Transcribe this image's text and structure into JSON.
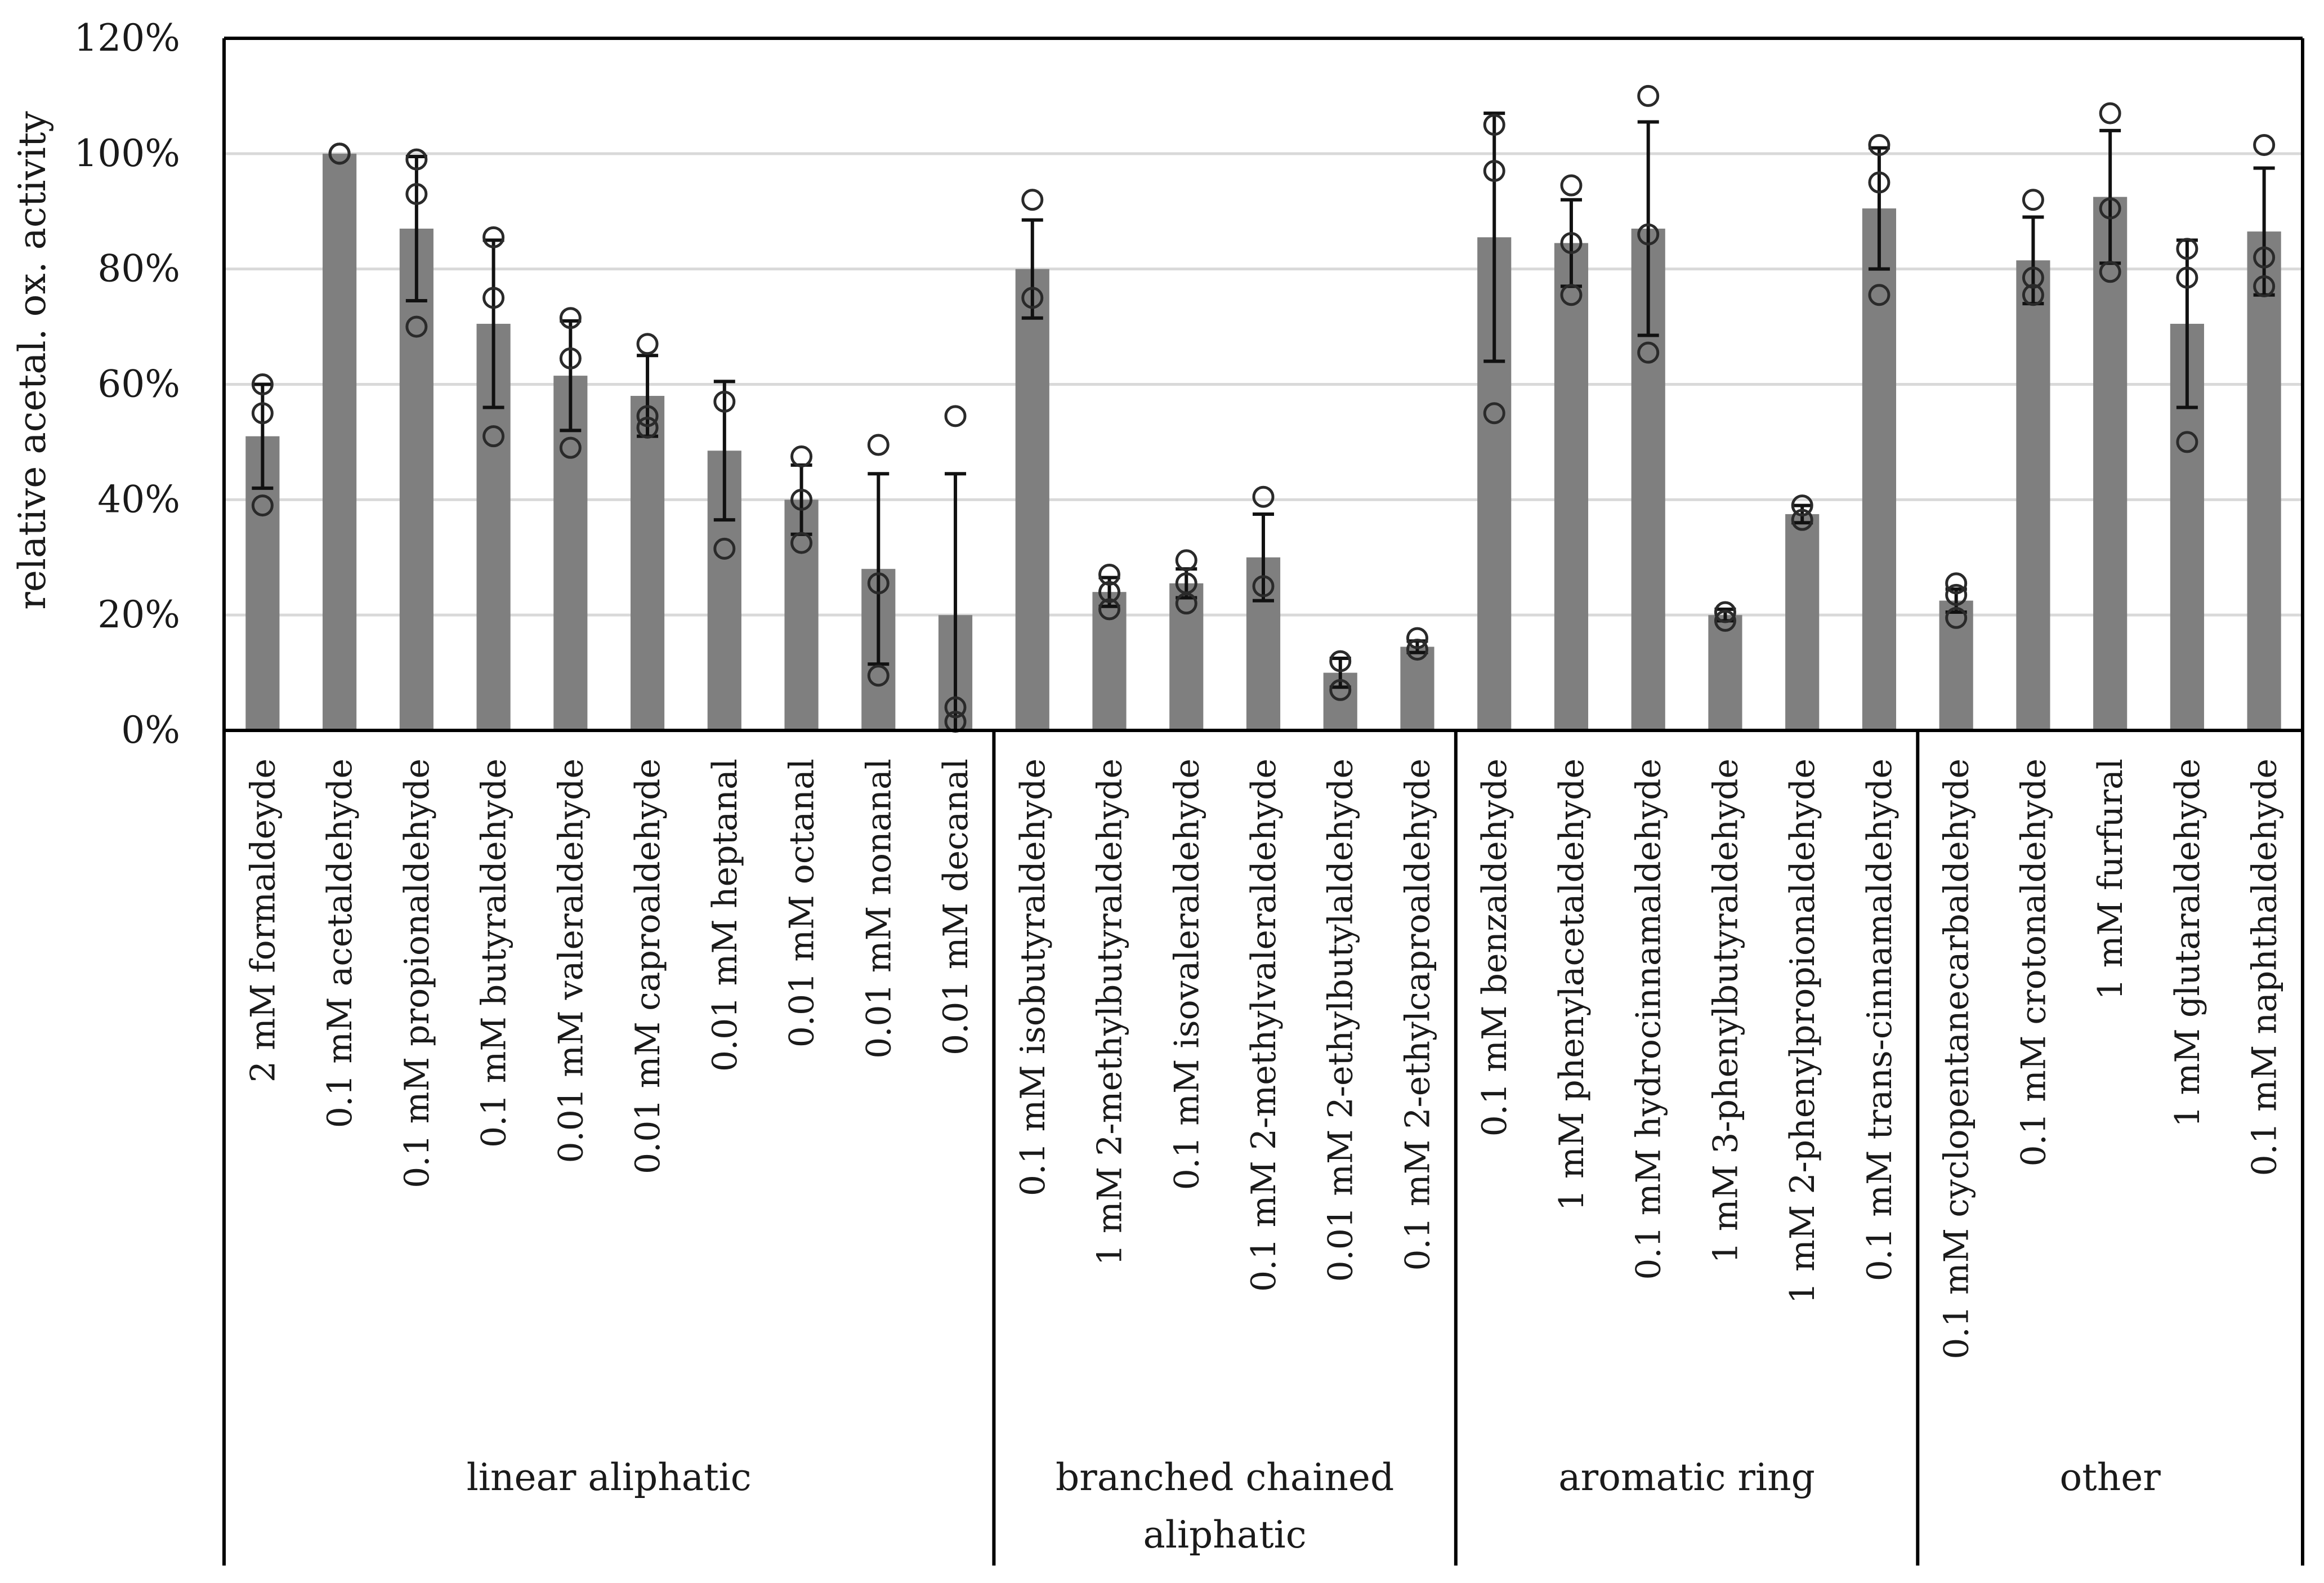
{
  "chart_data": {
    "type": "bar",
    "title": "",
    "xlabel": "",
    "ylabel": "relative acetal. ox. activity",
    "ylim": [
      0,
      120
    ],
    "ytick_values": [
      0,
      20,
      40,
      60,
      80,
      100,
      120
    ],
    "ytick_labels": [
      "0%",
      "20%",
      "40%",
      "60%",
      "80%",
      "100%",
      "120%"
    ],
    "grid": true,
    "colors": {
      "bar": "#7f7f7f",
      "error": "#111111",
      "marker": "#2a2a2a",
      "grid": "#d9d9d9",
      "axis": "#000000"
    },
    "groups": [
      {
        "label": "linear aliphatic",
        "start": 0,
        "end": 9
      },
      {
        "label": "branched chained aliphatic",
        "lines": [
          "branched chained",
          "aliphatic"
        ],
        "start": 10,
        "end": 15
      },
      {
        "label": "aromatic ring",
        "start": 16,
        "end": 21
      },
      {
        "label": "other",
        "start": 22,
        "end": 26
      }
    ],
    "categories": [
      "2 mM formaldeyde",
      "0.1 mM acetaldehyde",
      "0.1 mM propionaldehyde",
      "0.1 mM butyraldehyde",
      "0.01 mM valeraldehyde",
      "0.01 mM caproaldehyde",
      "0.01 mM heptanal",
      "0.01 mM octanal",
      "0.01 mM nonanal",
      "0.01 mM decanal",
      "0.1 mM isobutyraldehyde",
      "1 mM 2-methylbutyraldehyde",
      "0.1 mM isovaleraldehyde",
      "0.1 mM 2-methylvaleraldehyde",
      "0.01 mM 2-ethylbutylaldehyde",
      "0.1 mM 2-ethylcaproaldehyde",
      "0.1 mM benzaldehyde",
      "1 mM phenylacetaldehyde",
      "0.1 mM hydrocinnamaldehyde",
      "1 mM 3-phenylbutyraldehyde",
      "1 mM 2-phenylpropionaldehyde",
      "0.1 mM trans-cinnamaldehyde",
      "0.1 mM cyclopentanecarbaldehyde",
      "0.1 mM crotonaldehyde",
      "1 mM furfural",
      "1 mM glutaraldehyde",
      "0.1 mM naphthaldehyde"
    ],
    "values": [
      51,
      100,
      87,
      70.5,
      61.5,
      58,
      48.5,
      40,
      28,
      20,
      80,
      24,
      25.5,
      30,
      10,
      14.5,
      85.5,
      84.5,
      87,
      20,
      37.5,
      90.5,
      22.5,
      81.5,
      92.5,
      70.5,
      86.5
    ],
    "errors": [
      9,
      0,
      12.5,
      14.5,
      9.5,
      7,
      12,
      6,
      16.5,
      24.5,
      8.5,
      2.5,
      2.5,
      7.5,
      2.5,
      1,
      21.5,
      7.5,
      18.5,
      1,
      1.5,
      10.5,
      2,
      7.5,
      11.5,
      14.5,
      11
    ],
    "replicates": [
      [
        60,
        55,
        39
      ],
      [
        100,
        100,
        100
      ],
      [
        99,
        93,
        70
      ],
      [
        85.5,
        75,
        51
      ],
      [
        71.5,
        64.5,
        49
      ],
      [
        67,
        54.5,
        52.5
      ],
      [
        57,
        31.5
      ],
      [
        47.5,
        40,
        32.5
      ],
      [
        49.5,
        25.5,
        9.5
      ],
      [
        54.5,
        4,
        1.5
      ],
      [
        92,
        75
      ],
      [
        27,
        24,
        21
      ],
      [
        29.5,
        25.5,
        22
      ],
      [
        40.5,
        25
      ],
      [
        12,
        7
      ],
      [
        16,
        14
      ],
      [
        105,
        97,
        55
      ],
      [
        94.5,
        84.5,
        75.5
      ],
      [
        110,
        86,
        65.5
      ],
      [
        20.5,
        19
      ],
      [
        39,
        36.5
      ],
      [
        101.5,
        95,
        75.5
      ],
      [
        25.5,
        23.5,
        19.5
      ],
      [
        92,
        78.5,
        75.5
      ],
      [
        107,
        90.5,
        79.5
      ],
      [
        83.5,
        78.5,
        50
      ],
      [
        101.5,
        82,
        77
      ]
    ]
  }
}
